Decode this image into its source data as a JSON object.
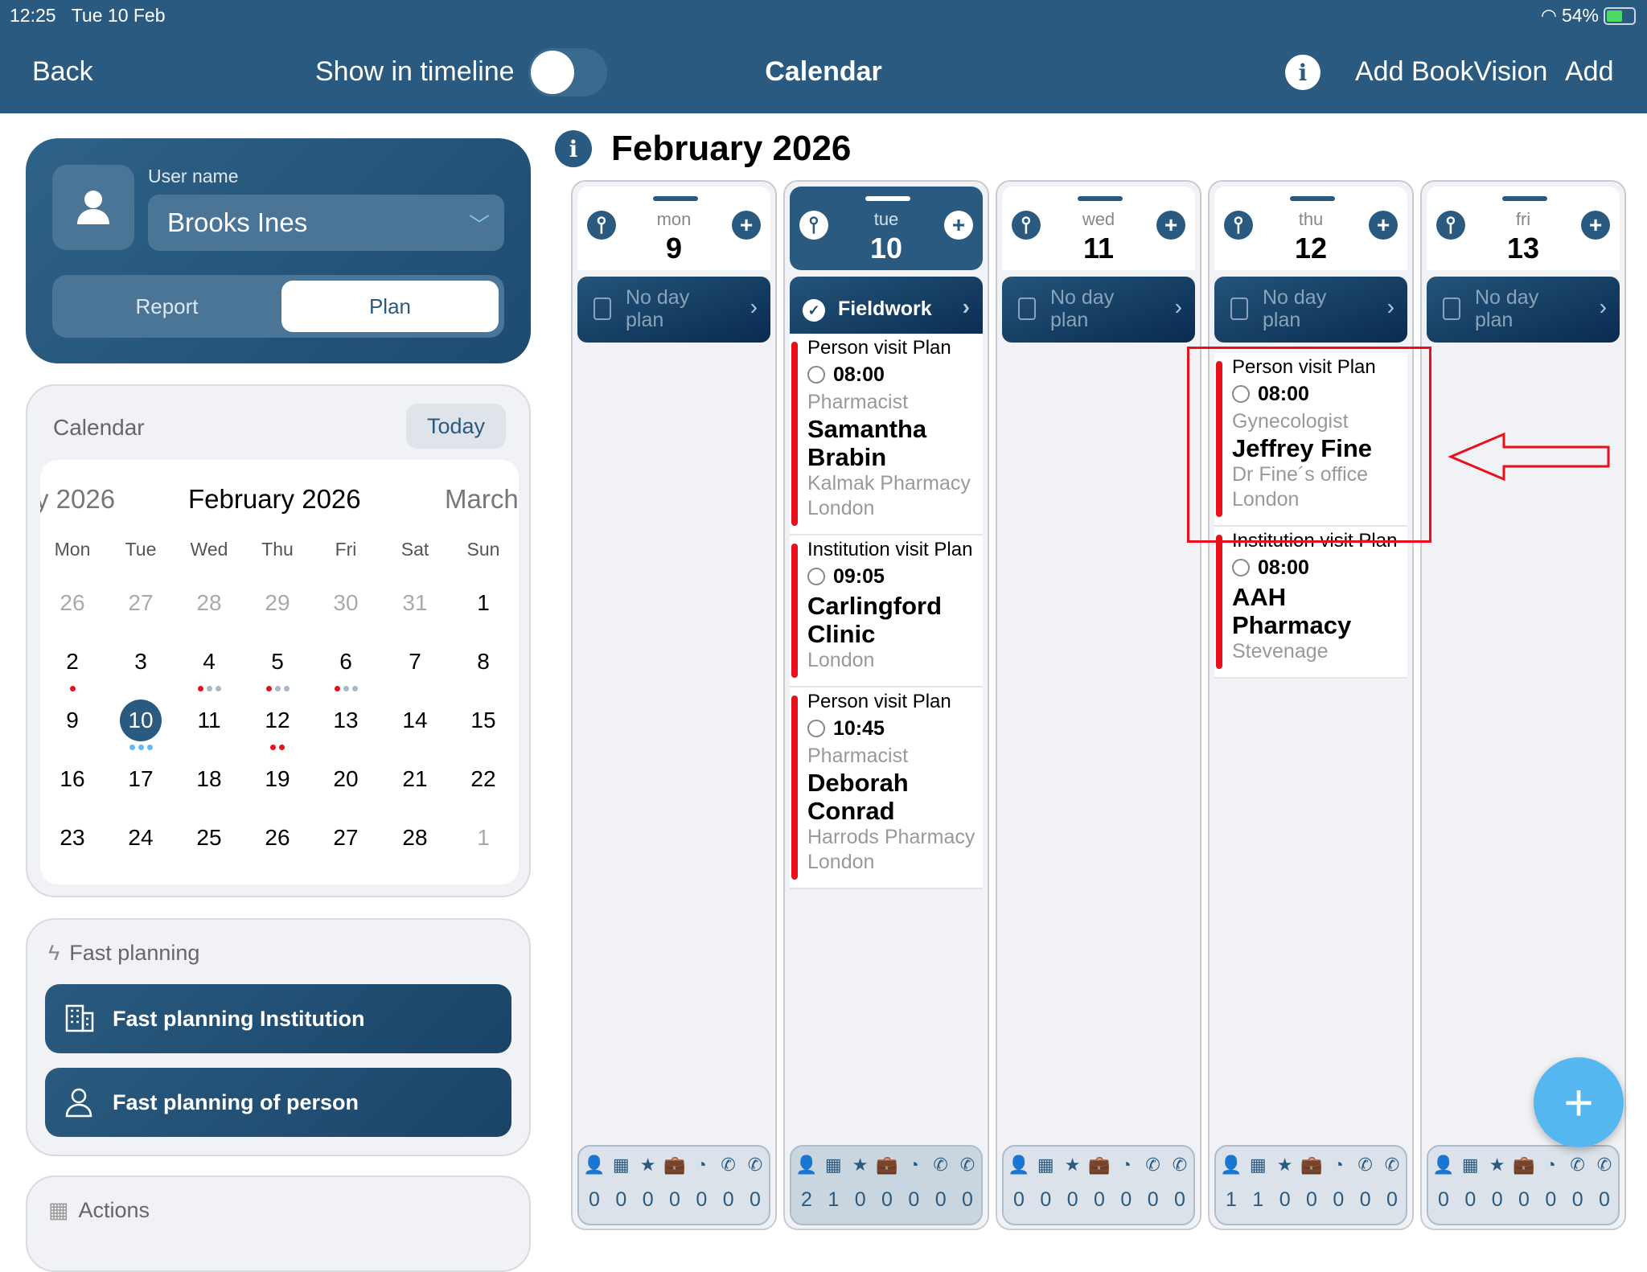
{
  "status": {
    "time": "12:25",
    "date": "Tue 10 Feb",
    "battery": "54%",
    "battery_level": 0.54
  },
  "nav": {
    "back": "Back",
    "show_in_timeline": "Show in timeline",
    "timeline_on": false,
    "title": "Calendar",
    "info_icon": "i",
    "add_bookvision": "Add BookVision",
    "add": "Add"
  },
  "user": {
    "label": "User name",
    "value": "Brooks Ines",
    "tabs": [
      "Report",
      "Plan"
    ],
    "active_tab": "Plan"
  },
  "mini_calendar": {
    "label": "Calendar",
    "today_button": "Today",
    "prev_month": "y 2026",
    "month": "February 2026",
    "next_month": "March",
    "weekdays": [
      "Mon",
      "Tue",
      "Wed",
      "Thu",
      "Fri",
      "Sat",
      "Sun"
    ],
    "colors": {
      "red": "#e8101a",
      "grey": "#a9b8c8",
      "blue": "#5bbcf0"
    },
    "weeks": [
      [
        {
          "d": "26",
          "muted": true
        },
        {
          "d": "27",
          "muted": true
        },
        {
          "d": "28",
          "muted": true
        },
        {
          "d": "29",
          "muted": true
        },
        {
          "d": "30",
          "muted": true
        },
        {
          "d": "31",
          "muted": true
        },
        {
          "d": "1"
        }
      ],
      [
        {
          "d": "2",
          "dots": [
            "red"
          ]
        },
        {
          "d": "3"
        },
        {
          "d": "4",
          "dots": [
            "red",
            "grey",
            "grey"
          ]
        },
        {
          "d": "5",
          "dots": [
            "red",
            "grey",
            "grey"
          ]
        },
        {
          "d": "6",
          "dots": [
            "red",
            "grey",
            "grey"
          ]
        },
        {
          "d": "7"
        },
        {
          "d": "8"
        }
      ],
      [
        {
          "d": "9"
        },
        {
          "d": "10",
          "selected": true,
          "dots": [
            "blue",
            "blue",
            "blue"
          ]
        },
        {
          "d": "11"
        },
        {
          "d": "12",
          "dots": [
            "red",
            "red"
          ]
        },
        {
          "d": "13"
        },
        {
          "d": "14"
        },
        {
          "d": "15"
        }
      ],
      [
        {
          "d": "16"
        },
        {
          "d": "17"
        },
        {
          "d": "18"
        },
        {
          "d": "19"
        },
        {
          "d": "20"
        },
        {
          "d": "21"
        },
        {
          "d": "22"
        }
      ],
      [
        {
          "d": "23"
        },
        {
          "d": "24"
        },
        {
          "d": "25"
        },
        {
          "d": "26"
        },
        {
          "d": "27"
        },
        {
          "d": "28"
        },
        {
          "d": "1",
          "muted": true
        }
      ]
    ]
  },
  "fast_planning": {
    "title": "Fast planning",
    "buttons": [
      "Fast planning Institution",
      "Fast planning of person"
    ]
  },
  "actions": {
    "title": "Actions"
  },
  "main": {
    "title": "February 2026"
  },
  "stat_icons": [
    "person",
    "building",
    "star",
    "briefcase",
    "clock",
    "phone",
    "phone-outgoing"
  ],
  "stat_glyphs": [
    "👤",
    "▦",
    "★",
    "💼",
    "◔",
    "✆",
    "✆"
  ],
  "days": [
    {
      "name": "mon",
      "num": "9",
      "plan": "No day plan",
      "plan_done": false,
      "stats": [
        "0",
        "0",
        "0",
        "0",
        "0",
        "0",
        "0"
      ],
      "events": []
    },
    {
      "name": "tue",
      "num": "10",
      "today": true,
      "plan": "Fieldwork",
      "plan_done": true,
      "stats": [
        "2",
        "1",
        "0",
        "0",
        "0",
        "0",
        "0"
      ],
      "events": [
        {
          "type": "Person visit Plan",
          "time": "08:00",
          "role": "Pharmacist",
          "name": "Samantha Brabin",
          "org": "Kalmak Pharmacy",
          "city": "London"
        },
        {
          "type": "Institution visit Plan",
          "time": "09:05",
          "name": "Carlingford Clinic",
          "city": "London"
        },
        {
          "type": "Person visit Plan",
          "time": "10:45",
          "role": "Pharmacist",
          "name": "Deborah Conrad",
          "org": "Harrods Pharmacy",
          "city": "London"
        }
      ]
    },
    {
      "name": "wed",
      "num": "11",
      "plan": "No day plan",
      "plan_done": false,
      "stats": [
        "0",
        "0",
        "0",
        "0",
        "0",
        "0",
        "0"
      ],
      "events": []
    },
    {
      "name": "thu",
      "num": "12",
      "plan": "No day plan",
      "plan_done": false,
      "stats": [
        "1",
        "1",
        "0",
        "0",
        "0",
        "0",
        "0"
      ],
      "events": [
        {
          "type": "Person visit Plan",
          "time": "08:00",
          "role": "Gynecologist",
          "name": "Jeffrey Fine",
          "org": "Dr Fine´s office",
          "city": "London"
        },
        {
          "type": "Institution visit Plan",
          "time": "08:00",
          "name": "AAH Pharmacy",
          "city": "Stevenage"
        }
      ]
    },
    {
      "name": "fri",
      "num": "13",
      "plan": "No day plan",
      "plan_done": false,
      "stats": [
        "0",
        "0",
        "0",
        "0",
        "0",
        "0",
        "0"
      ],
      "events": []
    }
  ],
  "annotation": {
    "highlight_color": "#e8101a"
  },
  "fab": {
    "icon": "plus-icon",
    "label": "+"
  }
}
